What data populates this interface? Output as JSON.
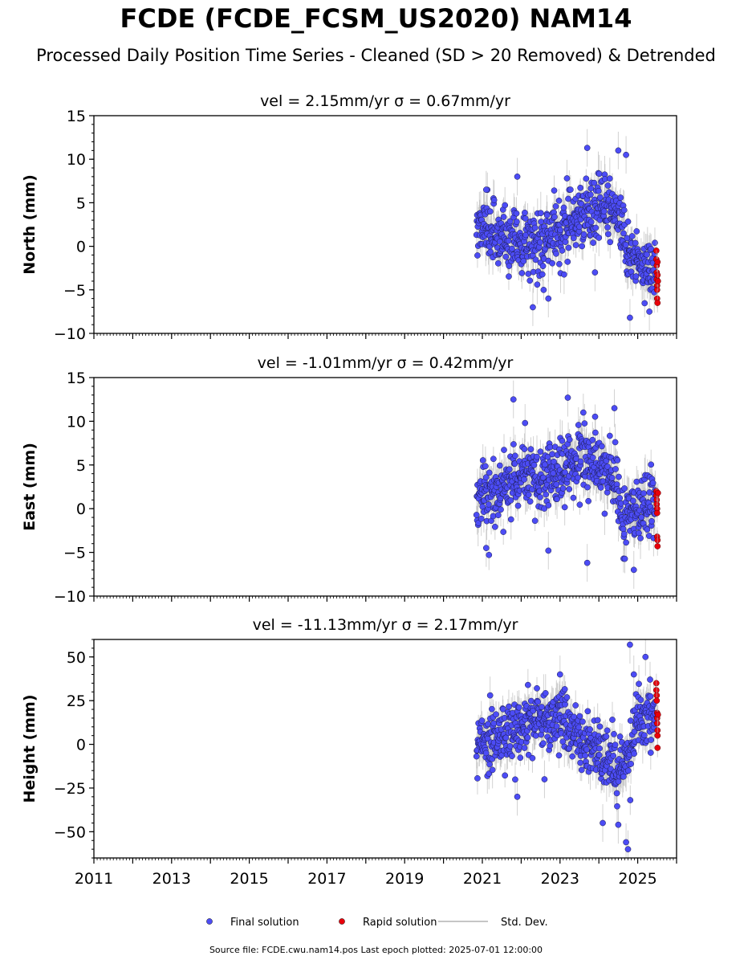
{
  "title": "FCDE (FCDE_FCSM_US2020) NAM14",
  "subtitle": "Processed Daily Position Time Series - Cleaned (SD > 20 Removed) & Detrended",
  "footer": "Source file: FCDE.cwu.nam14.pos  Last epoch plotted: 2025-07-01 12:00:00",
  "colors": {
    "final": "#4c4cf5",
    "rapid": "#e8000b",
    "stddev": "#b4b4b4"
  },
  "chart_data": [
    {
      "type": "scatter",
      "title": "vel = 2.15mm/yr   σ = 0.67mm/yr",
      "xlabel": "",
      "ylabel": "North (mm)",
      "xlim": [
        2011.0,
        2026.0
      ],
      "ylim": [
        -10,
        15
      ],
      "yticks": [
        -10,
        -5,
        0,
        5,
        10,
        15
      ],
      "yticklabels": [
        "−10",
        "−5",
        "0",
        "5",
        "10",
        "15"
      ],
      "trend_anchors": [
        [
          2020.85,
          2.5
        ],
        [
          2021.5,
          1.5
        ],
        [
          2022.0,
          0.5
        ],
        [
          2022.5,
          0.5
        ],
        [
          2023.0,
          1.5
        ],
        [
          2023.5,
          3.5
        ],
        [
          2024.0,
          5.0
        ],
        [
          2024.5,
          3.5
        ],
        [
          2024.8,
          -1.0
        ],
        [
          2025.2,
          -2.5
        ],
        [
          2025.45,
          -2.5
        ]
      ],
      "scatter_sd": 1.8,
      "outliers": [
        [
          2021.9,
          8.0
        ],
        [
          2023.7,
          11.3
        ],
        [
          2024.5,
          11.0
        ],
        [
          2024.7,
          10.5
        ],
        [
          2022.7,
          -6.0
        ],
        [
          2024.8,
          -8.2
        ],
        [
          2025.3,
          -7.5
        ],
        [
          2021.1,
          6.5
        ],
        [
          2022.3,
          -7.0
        ],
        [
          2023.9,
          -3.0
        ]
      ],
      "rapid": [
        [
          2025.48,
          -0.5
        ],
        [
          2025.48,
          -1.5
        ],
        [
          2025.49,
          -2.2
        ],
        [
          2025.49,
          -3.0
        ],
        [
          2025.49,
          -3.8
        ],
        [
          2025.5,
          -4.5
        ],
        [
          2025.5,
          -5.0
        ],
        [
          2025.5,
          -6.0
        ],
        [
          2025.51,
          -6.5
        ],
        [
          2025.51,
          -1.8
        ],
        [
          2025.51,
          -3.3
        ],
        [
          2025.52,
          -4.0
        ]
      ]
    },
    {
      "type": "scatter",
      "title": "vel = -1.01mm/yr   σ = 0.42mm/yr",
      "xlabel": "",
      "ylabel": "East (mm)",
      "xlim": [
        2011.0,
        2026.0
      ],
      "ylim": [
        -10,
        15
      ],
      "yticks": [
        -10,
        -5,
        0,
        5,
        10,
        15
      ],
      "yticklabels": [
        "−10",
        "−5",
        "0",
        "5",
        "10",
        "15"
      ],
      "trend_anchors": [
        [
          2020.85,
          1.0
        ],
        [
          2021.5,
          2.5
        ],
        [
          2022.0,
          3.5
        ],
        [
          2022.5,
          3.5
        ],
        [
          2023.0,
          4.5
        ],
        [
          2023.5,
          5.5
        ],
        [
          2024.0,
          5.0
        ],
        [
          2024.4,
          4.0
        ],
        [
          2024.6,
          -1.0
        ],
        [
          2025.0,
          0.0
        ],
        [
          2025.45,
          0.5
        ]
      ],
      "scatter_sd": 1.8,
      "outliers": [
        [
          2021.8,
          12.5
        ],
        [
          2023.2,
          12.7
        ],
        [
          2024.4,
          11.5
        ],
        [
          2021.1,
          -4.5
        ],
        [
          2022.7,
          -4.8
        ],
        [
          2023.7,
          -6.2
        ],
        [
          2024.9,
          -7.0
        ],
        [
          2023.6,
          11.0
        ],
        [
          2022.1,
          9.8
        ]
      ],
      "rapid": [
        [
          2025.48,
          2.0
        ],
        [
          2025.48,
          1.5
        ],
        [
          2025.49,
          1.0
        ],
        [
          2025.49,
          0.5
        ],
        [
          2025.5,
          0.0
        ],
        [
          2025.5,
          -0.5
        ],
        [
          2025.5,
          -3.2
        ],
        [
          2025.51,
          -3.6
        ],
        [
          2025.51,
          -4.3
        ],
        [
          2025.52,
          1.8
        ]
      ]
    },
    {
      "type": "scatter",
      "title": "vel = -11.13mm/yr   σ = 2.17mm/yr",
      "xlabel": "",
      "ylabel": "Height (mm)",
      "xlim": [
        2011.0,
        2026.0
      ],
      "ylim": [
        -65,
        60
      ],
      "yticks": [
        -50,
        -25,
        0,
        25,
        50
      ],
      "yticklabels": [
        "−50",
        "−25",
        "0",
        "25",
        "50"
      ],
      "xticks": [
        2011,
        2013,
        2015,
        2017,
        2019,
        2021,
        2023,
        2025
      ],
      "xticklabels": [
        "2011",
        "2013",
        "2015",
        "2017",
        "2019",
        "2021",
        "2023",
        "2025"
      ],
      "trend_anchors": [
        [
          2020.85,
          -2.0
        ],
        [
          2021.5,
          5.0
        ],
        [
          2022.0,
          10.0
        ],
        [
          2022.5,
          15.0
        ],
        [
          2023.0,
          15.0
        ],
        [
          2023.5,
          5.0
        ],
        [
          2024.0,
          -5.0
        ],
        [
          2024.4,
          -10.0
        ],
        [
          2024.6,
          -15.0
        ],
        [
          2025.0,
          15.0
        ],
        [
          2025.45,
          15.0
        ]
      ],
      "scatter_sd": 9.0,
      "outliers": [
        [
          2024.8,
          57.0
        ],
        [
          2025.2,
          50.0
        ],
        [
          2024.75,
          -60.0
        ],
        [
          2024.7,
          -56.0
        ],
        [
          2024.5,
          -46.0
        ],
        [
          2022.6,
          -20.0
        ],
        [
          2021.9,
          -30.0
        ],
        [
          2023.0,
          40.0
        ],
        [
          2021.2,
          28.0
        ],
        [
          2024.9,
          40.0
        ],
        [
          2024.1,
          -45.0
        ]
      ],
      "rapid": [
        [
          2025.48,
          35.0
        ],
        [
          2025.48,
          31.0
        ],
        [
          2025.49,
          28.0
        ],
        [
          2025.49,
          25.0
        ],
        [
          2025.5,
          18.0
        ],
        [
          2025.5,
          15.0
        ],
        [
          2025.5,
          12.0
        ],
        [
          2025.51,
          8.0
        ],
        [
          2025.51,
          5.0
        ],
        [
          2025.51,
          -2.0
        ],
        [
          2025.52,
          17.0
        ]
      ]
    }
  ],
  "legend": {
    "placement": "bottom-center",
    "entries": [
      {
        "label": "Final solution",
        "kind": "final"
      },
      {
        "label": "Rapid solution",
        "kind": "rapid"
      },
      {
        "label": "Std. Dev.",
        "kind": "stddev"
      }
    ]
  }
}
